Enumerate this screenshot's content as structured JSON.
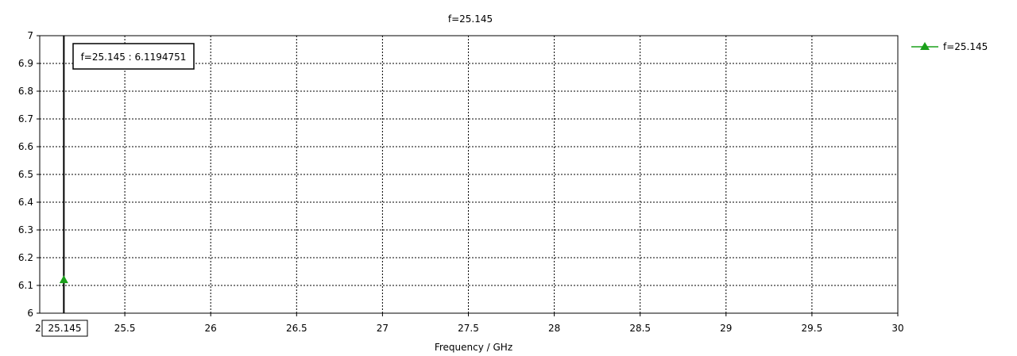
{
  "chart_data": {
    "type": "line",
    "title": "f=25.145",
    "xlabel": "Frequency / GHz",
    "ylabel": "",
    "xlim": [
      25.145,
      30
    ],
    "ylim": [
      6,
      7
    ],
    "x_ticks": [
      25.5,
      26,
      26.5,
      27,
      27.5,
      28,
      28.5,
      29,
      29.5,
      30
    ],
    "x_tick_labels": [
      "25.5",
      "26",
      "26.5",
      "27",
      "27.5",
      "28",
      "28.5",
      "29",
      "29.5",
      "30"
    ],
    "x_axis_start_fragment": "2",
    "y_ticks": [
      6,
      6.1,
      6.2,
      6.3,
      6.4,
      6.5,
      6.6,
      6.7,
      6.8,
      6.9,
      7
    ],
    "y_tick_labels": [
      "6",
      "6.1",
      "6.2",
      "6.3",
      "6.4",
      "6.5",
      "6.6",
      "6.7",
      "6.8",
      "6.9",
      "7"
    ],
    "grid": true,
    "legend_position": "top-right",
    "series": [
      {
        "name": "f=25.145",
        "color": "#1aa01a",
        "marker": "triangle",
        "x": [
          25.145
        ],
        "y": [
          6.1194751
        ]
      }
    ],
    "marker_line": {
      "x": 25.145,
      "axis_label": "25.145",
      "annotation": "f=25.145 : 6.1194751"
    }
  }
}
